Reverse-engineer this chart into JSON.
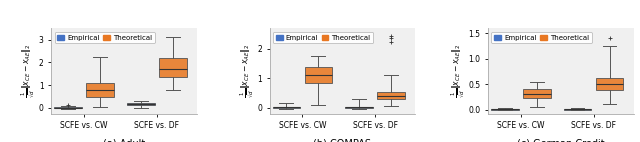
{
  "subplots": [
    {
      "label": "(a) Adult",
      "ylabel": "$\\frac{1}{\\sqrt{d}} \\| x_{CE} - x_{AE} \\|_2$",
      "ylim": [
        -0.25,
        3.5
      ],
      "yticks": [
        0,
        1,
        2,
        3
      ],
      "groups": [
        "SCFE vs. CW",
        "SCFE vs. DF"
      ],
      "empirical": {
        "CW": {
          "q1": -0.02,
          "med": 0.01,
          "q3": 0.03,
          "whislo": -0.05,
          "whishi": 0.08,
          "fliers": [
            0.13
          ]
        },
        "DF": {
          "q1": 0.13,
          "med": 0.18,
          "q3": 0.23,
          "whislo": 0.0,
          "whishi": 0.3,
          "fliers": []
        }
      },
      "theoretical": {
        "CW": {
          "q1": 0.5,
          "med": 0.8,
          "q3": 1.1,
          "whislo": 0.05,
          "whishi": 2.25,
          "fliers": []
        },
        "DF": {
          "q1": 1.35,
          "med": 1.7,
          "q3": 2.2,
          "whislo": 0.8,
          "whishi": 3.1,
          "fliers": []
        }
      }
    },
    {
      "label": "(b) COMPAS",
      "ylabel": "$\\frac{1}{\\sqrt{d}} \\| x_{CE} - x_{AE} \\|_2$",
      "ylim": [
        -0.2,
        2.7
      ],
      "yticks": [
        0,
        1,
        2
      ],
      "groups": [
        "SCFE vs. CW",
        "SCFE vs. DF"
      ],
      "empirical": {
        "CW": {
          "q1": -0.01,
          "med": 0.01,
          "q3": 0.03,
          "whislo": -0.04,
          "whishi": 0.15,
          "fliers": []
        },
        "DF": {
          "q1": -0.01,
          "med": 0.01,
          "q3": 0.03,
          "whislo": -0.05,
          "whishi": 0.3,
          "fliers": []
        }
      },
      "theoretical": {
        "CW": {
          "q1": 0.85,
          "med": 1.1,
          "q3": 1.38,
          "whislo": 0.1,
          "whishi": 1.75,
          "fliers": []
        },
        "DF": {
          "q1": 0.28,
          "med": 0.4,
          "q3": 0.52,
          "whislo": 0.05,
          "whishi": 1.1,
          "fliers": [
            2.25,
            2.38,
            2.45
          ]
        }
      }
    },
    {
      "label": "(c) German Credit",
      "ylabel": "$\\frac{1}{\\sqrt{d}} \\| x_{CE} - x_{AE} \\|_2$",
      "ylim": [
        -0.08,
        1.6
      ],
      "yticks": [
        0.0,
        0.5,
        1.0,
        1.5
      ],
      "groups": [
        "SCFE vs. CW",
        "SCFE vs. DF"
      ],
      "empirical": {
        "CW": {
          "q1": -0.005,
          "med": 0.005,
          "q3": 0.015,
          "whislo": -0.01,
          "whishi": 0.025,
          "fliers": []
        },
        "DF": {
          "q1": -0.005,
          "med": 0.005,
          "q3": 0.015,
          "whislo": -0.01,
          "whishi": 0.025,
          "fliers": []
        }
      },
      "theoretical": {
        "CW": {
          "q1": 0.22,
          "med": 0.3,
          "q3": 0.4,
          "whislo": 0.05,
          "whishi": 0.55,
          "fliers": []
        },
        "DF": {
          "q1": 0.38,
          "med": 0.5,
          "q3": 0.62,
          "whislo": 0.1,
          "whishi": 1.25,
          "fliers": [
            1.42
          ]
        }
      }
    }
  ],
  "empirical_color": "#4472C4",
  "theoretical_color": "#E87722",
  "box_width": 0.38,
  "figsize": [
    6.4,
    1.42
  ],
  "dpi": 100,
  "legend_labels": [
    "Empirical",
    "Theoretical"
  ],
  "bg_color": "#f5f5f5"
}
